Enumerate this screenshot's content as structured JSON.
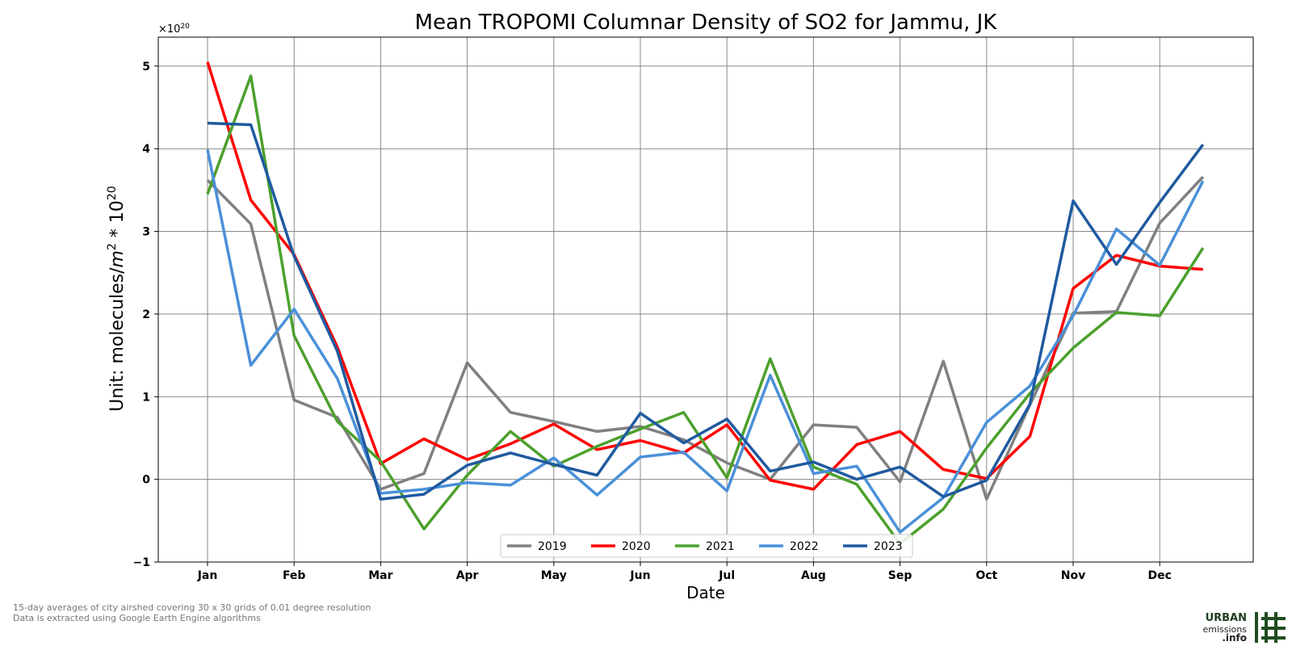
{
  "chart_data": {
    "type": "line",
    "title": "Mean TROPOMI Columnar Density of SO2 for Jammu, JK",
    "xlabel": "Date",
    "ylabel_prefix": "Unit: molecules/",
    "ylabel_m": "m",
    "ylabel_sq": "2",
    "ylabel_mid": " * 10",
    "ylabel_exp": "20",
    "offset_base": "×10",
    "offset_exp": "20",
    "x_tick_labels": [
      "Jan",
      "Feb",
      "Mar",
      "Apr",
      "May",
      "Jun",
      "Jul",
      "Aug",
      "Sep",
      "Oct",
      "Nov",
      "Dec"
    ],
    "y_ticks": [
      -1,
      0,
      1,
      2,
      3,
      4,
      5
    ],
    "y_tick_labels": [
      "−1",
      "0",
      "1",
      "2",
      "3",
      "4",
      "5"
    ],
    "ylim": [
      -1.0,
      5.35
    ],
    "x_periods": [
      "Jan 1-15",
      "Jan 16-31",
      "Feb 1-15",
      "Feb 16-28",
      "Mar 1-15",
      "Mar 16-31",
      "Apr 1-15",
      "Apr 16-30",
      "May 1-15",
      "May 16-31",
      "Jun 1-15",
      "Jun 16-30",
      "Jul 1-15",
      "Jul 16-31",
      "Aug 1-15",
      "Aug 16-31",
      "Sep 1-15",
      "Sep 16-30",
      "Oct 1-15",
      "Oct 16-31",
      "Nov 1-15",
      "Nov 16-30",
      "Dec 1-15",
      "Dec 16-31"
    ],
    "grid": true,
    "legend_position": "bottom-center",
    "series": [
      {
        "name": "2019",
        "color": "#808080",
        "values": [
          3.62,
          3.09,
          0.96,
          0.75,
          -0.12,
          0.07,
          1.41,
          0.81,
          0.7,
          0.58,
          0.64,
          0.48,
          0.2,
          0.0,
          0.66,
          0.63,
          -0.03,
          1.43,
          -0.24,
          0.9,
          2.01,
          2.03,
          3.1,
          3.66
        ]
      },
      {
        "name": "2020",
        "color": "#ff0000",
        "values": [
          5.05,
          3.38,
          2.72,
          1.6,
          0.19,
          0.49,
          0.24,
          0.43,
          0.67,
          0.36,
          0.47,
          0.32,
          0.66,
          -0.01,
          -0.12,
          0.42,
          0.58,
          0.12,
          0.01,
          0.52,
          2.31,
          2.71,
          2.58,
          2.54
        ]
      },
      {
        "name": "2021",
        "color": "#4ca02d",
        "values": [
          3.45,
          4.88,
          1.74,
          0.7,
          0.22,
          -0.6,
          0.05,
          0.58,
          0.16,
          0.4,
          0.61,
          0.81,
          0.02,
          1.46,
          0.15,
          -0.06,
          -0.78,
          -0.36,
          0.38,
          1.04,
          1.59,
          2.02,
          1.98,
          2.8
        ]
      },
      {
        "name": "2022",
        "color": "#4a90d9",
        "values": [
          3.99,
          1.38,
          2.06,
          1.22,
          -0.17,
          -0.12,
          -0.04,
          -0.07,
          0.26,
          -0.19,
          0.27,
          0.33,
          -0.14,
          1.26,
          0.07,
          0.16,
          -0.64,
          -0.22,
          0.69,
          1.13,
          1.98,
          3.03,
          2.59,
          3.61
        ]
      },
      {
        "name": "2023",
        "color": "#1f5aa0",
        "values": [
          4.31,
          4.29,
          2.7,
          1.55,
          -0.24,
          -0.18,
          0.17,
          0.32,
          0.18,
          0.05,
          0.8,
          0.44,
          0.73,
          0.1,
          0.21,
          0.0,
          0.15,
          -0.21,
          -0.01,
          0.91,
          3.37,
          2.6,
          3.35,
          4.05
        ]
      }
    ]
  },
  "footnote": {
    "line1": "15-day averages of city airshed covering 30 x 30 grids of 0.01 degree resolution",
    "line2": "Data is extracted using Google Earth Engine algorithms"
  },
  "logo": {
    "urban": "URBAN",
    "emissions": "emissions",
    "info": ".info",
    "color": "#1f4d1f"
  }
}
